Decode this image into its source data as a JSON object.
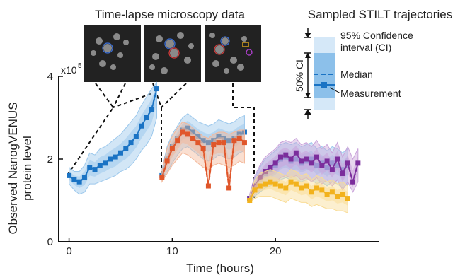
{
  "chart_data": {
    "type": "line",
    "microscopy_title": "Time-lapse microscopy data",
    "legend_title": "Sampled STILT trajectories",
    "xlabel": "Time (hours)",
    "ylabel_line1": "Observed NanogVENUS",
    "ylabel_line2": "protein level",
    "y_multiplier": "x10",
    "y_multiplier_exp": "5",
    "xlim": [
      -1,
      30
    ],
    "ylim": [
      0,
      400000
    ],
    "x_ticks": [
      "0",
      "10",
      "20"
    ],
    "x_tick_values": [
      0,
      10,
      20
    ],
    "y_ticks": [
      "0",
      "2",
      "4"
    ],
    "y_tick_values": [
      0,
      200000,
      400000
    ],
    "legend_items": {
      "ci95": "95% Confidence",
      "ci95_line2": "interval (CI)",
      "ci50": "50% CI",
      "median": "Median",
      "measurement": "Measurement"
    },
    "colors": {
      "blue": "#1a73c4",
      "blue_band": "#9cc8ec",
      "orange": "#e0562a",
      "orange_band": "#f4b89a",
      "purple": "#7b2d9c",
      "purple_band": "#c9a3da",
      "yellow": "#f2b21c",
      "yellow_band": "#f9dc95",
      "light_blue_band": "#a9cdee"
    },
    "series": [
      {
        "segment": 1,
        "color": "blue",
        "x": [
          0,
          0.5,
          1,
          1.5,
          2,
          2.5,
          3,
          3.5,
          4,
          4.5,
          5,
          5.5,
          6,
          6.5,
          7,
          7.5,
          8,
          8.5
        ],
        "values": [
          160000,
          150000,
          145000,
          155000,
          180000,
          175000,
          185000,
          190000,
          200000,
          205000,
          215000,
          225000,
          240000,
          255000,
          280000,
          300000,
          320000,
          370000
        ],
        "band95": [
          [
            140000,
            180000
          ],
          [
            125000,
            170000
          ],
          [
            115000,
            170000
          ],
          [
            120000,
            185000
          ],
          [
            140000,
            215000
          ],
          [
            140000,
            210000
          ],
          [
            145000,
            225000
          ],
          [
            150000,
            230000
          ],
          [
            155000,
            240000
          ],
          [
            160000,
            250000
          ],
          [
            170000,
            260000
          ],
          [
            175000,
            275000
          ],
          [
            185000,
            290000
          ],
          [
            200000,
            305000
          ],
          [
            220000,
            330000
          ],
          [
            235000,
            350000
          ],
          [
            255000,
            370000
          ],
          [
            300000,
            385000
          ]
        ]
      },
      {
        "segment": 2,
        "color": "blue",
        "x": [
          9,
          9.5,
          10,
          10.5,
          11,
          11.5,
          12,
          12.5,
          13,
          13.5,
          14,
          14.5,
          15,
          15.5,
          16,
          16.5,
          17
        ],
        "values": [
          160000,
          200000,
          230000,
          250000,
          270000,
          275000,
          265000,
          255000,
          245000,
          240000,
          245000,
          255000,
          250000,
          245000,
          250000,
          260000,
          265000
        ],
        "band95": [
          [
            150000,
            175000
          ],
          [
            170000,
            230000
          ],
          [
            190000,
            260000
          ],
          [
            210000,
            280000
          ],
          [
            225000,
            300000
          ],
          [
            230000,
            310000
          ],
          [
            220000,
            300000
          ],
          [
            210000,
            290000
          ],
          [
            200000,
            285000
          ],
          [
            195000,
            280000
          ],
          [
            200000,
            285000
          ],
          [
            210000,
            295000
          ],
          [
            205000,
            290000
          ],
          [
            200000,
            285000
          ],
          [
            205000,
            290000
          ],
          [
            215000,
            300000
          ],
          [
            220000,
            305000
          ]
        ]
      },
      {
        "segment": 2,
        "color": "orange",
        "x": [
          9,
          9.5,
          10,
          10.5,
          11,
          11.5,
          12,
          12.5,
          13,
          13.5,
          14,
          14.5,
          15,
          15.5,
          16,
          16.5,
          17
        ],
        "values": [
          155000,
          195000,
          225000,
          245000,
          265000,
          260000,
          250000,
          240000,
          225000,
          135000,
          235000,
          240000,
          240000,
          130000,
          245000,
          250000,
          240000
        ],
        "band95": [
          [
            145000,
            170000
          ],
          [
            165000,
            225000
          ],
          [
            185000,
            255000
          ],
          [
            200000,
            275000
          ],
          [
            215000,
            290000
          ],
          [
            210000,
            285000
          ],
          [
            200000,
            275000
          ],
          [
            190000,
            265000
          ],
          [
            180000,
            255000
          ],
          [
            175000,
            250000
          ],
          [
            185000,
            260000
          ],
          [
            190000,
            265000
          ],
          [
            185000,
            265000
          ],
          [
            180000,
            260000
          ],
          [
            185000,
            265000
          ],
          [
            195000,
            270000
          ],
          [
            190000,
            270000
          ]
        ]
      },
      {
        "segment": 3,
        "color": "blue",
        "x": [
          17.5,
          18,
          18.5,
          19,
          19.5,
          20,
          20.5,
          21,
          21.5,
          22,
          22.5,
          23,
          23.5,
          24,
          24.5,
          25,
          25.5,
          26,
          26.5,
          27
        ],
        "values": [
          105000,
          130000,
          150000,
          165000,
          175000,
          185000,
          200000,
          205000,
          195000,
          200000,
          190000,
          195000,
          200000,
          185000,
          190000,
          180000,
          190000,
          185000,
          175000,
          185000
        ],
        "band95": [
          [
            100000,
            115000
          ],
          [
            110000,
            155000
          ],
          [
            120000,
            180000
          ],
          [
            130000,
            200000
          ],
          [
            135000,
            210000
          ],
          [
            140000,
            220000
          ],
          [
            150000,
            235000
          ],
          [
            155000,
            240000
          ],
          [
            150000,
            235000
          ],
          [
            150000,
            240000
          ],
          [
            145000,
            230000
          ],
          [
            150000,
            235000
          ],
          [
            150000,
            240000
          ],
          [
            140000,
            225000
          ],
          [
            145000,
            230000
          ],
          [
            135000,
            220000
          ],
          [
            145000,
            230000
          ],
          [
            140000,
            225000
          ],
          [
            130000,
            215000
          ],
          [
            140000,
            225000
          ]
        ]
      },
      {
        "segment": 3,
        "color": "purple",
        "x": [
          17.5,
          18,
          18.5,
          19,
          19.5,
          20,
          20.5,
          21,
          21.5,
          22,
          22.5,
          23,
          23.5,
          24,
          24.5,
          25,
          25.5,
          26,
          26.5,
          27,
          27.5,
          28
        ],
        "values": [
          105000,
          135000,
          155000,
          170000,
          180000,
          190000,
          205000,
          210000,
          200000,
          215000,
          195000,
          200000,
          190000,
          205000,
          185000,
          195000,
          175000,
          200000,
          165000,
          190000,
          145000,
          190000
        ],
        "band95": [
          [
            100000,
            115000
          ],
          [
            115000,
            160000
          ],
          [
            125000,
            185000
          ],
          [
            135000,
            205000
          ],
          [
            140000,
            215000
          ],
          [
            145000,
            225000
          ],
          [
            155000,
            240000
          ],
          [
            160000,
            245000
          ],
          [
            155000,
            240000
          ],
          [
            160000,
            250000
          ],
          [
            150000,
            235000
          ],
          [
            155000,
            240000
          ],
          [
            145000,
            230000
          ],
          [
            155000,
            245000
          ],
          [
            140000,
            225000
          ],
          [
            150000,
            235000
          ],
          [
            135000,
            215000
          ],
          [
            150000,
            240000
          ],
          [
            125000,
            205000
          ],
          [
            145000,
            230000
          ],
          [
            120000,
            200000
          ],
          [
            145000,
            225000
          ]
        ]
      },
      {
        "segment": 3,
        "color": "yellow",
        "x": [
          17.5,
          18,
          18.5,
          19,
          19.5,
          20,
          20.5,
          21,
          21.5,
          22,
          22.5,
          23,
          23.5,
          24,
          24.5,
          25,
          25.5,
          26,
          26.5,
          27
        ],
        "values": [
          100000,
          125000,
          135000,
          140000,
          145000,
          140000,
          135000,
          130000,
          145000,
          140000,
          130000,
          135000,
          120000,
          130000,
          125000,
          115000,
          120000,
          110000,
          115000,
          105000
        ],
        "band95": [
          [
            95000,
            110000
          ],
          [
            105000,
            150000
          ],
          [
            110000,
            165000
          ],
          [
            110000,
            170000
          ],
          [
            110000,
            175000
          ],
          [
            105000,
            170000
          ],
          [
            100000,
            165000
          ],
          [
            95000,
            160000
          ],
          [
            105000,
            175000
          ],
          [
            100000,
            170000
          ],
          [
            95000,
            160000
          ],
          [
            95000,
            165000
          ],
          [
            85000,
            150000
          ],
          [
            90000,
            160000
          ],
          [
            85000,
            155000
          ],
          [
            80000,
            145000
          ],
          [
            80000,
            150000
          ],
          [
            75000,
            140000
          ],
          [
            75000,
            145000
          ],
          [
            70000,
            135000
          ]
        ]
      }
    ]
  }
}
